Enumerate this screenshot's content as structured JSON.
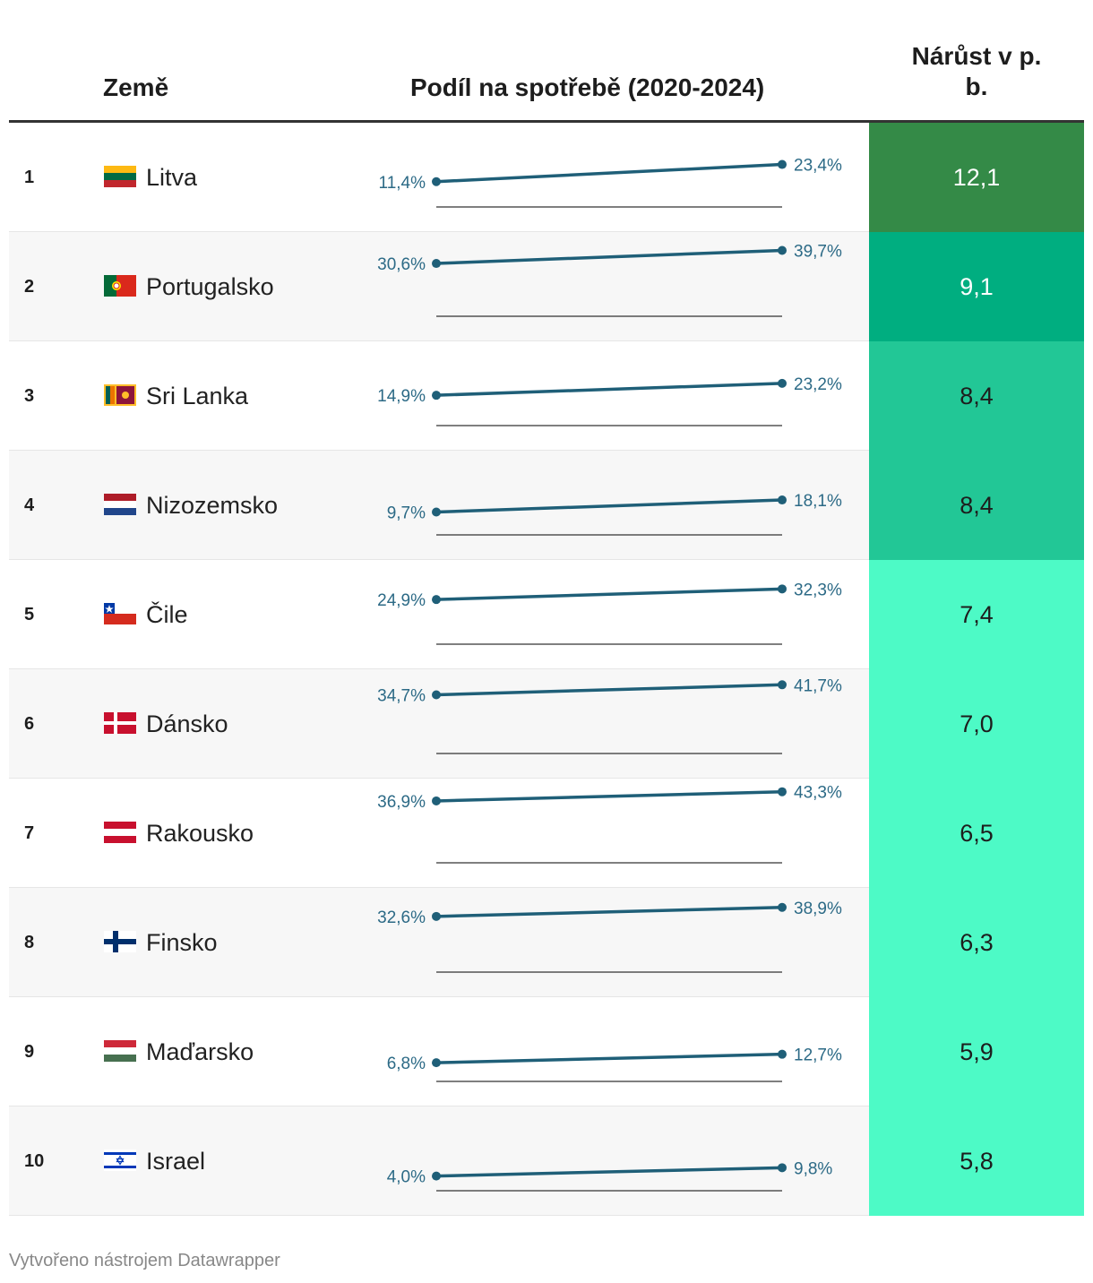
{
  "header": {
    "country": "Země",
    "share": "Podíl na spotřebě (2020-2024)",
    "growth_line1": "Nárůst v p.",
    "growth_line2": "b."
  },
  "footer": "Vytvořeno nástrojem Datawrapper",
  "colors": {
    "line": "#1f5f78",
    "label": "#2c6a86",
    "growth_scale": [
      "#348a47",
      "#00ae80",
      "#22c796",
      "#22c796",
      "#4dfac6"
    ]
  },
  "chart_data": {
    "type": "table",
    "columns": [
      "Země",
      "Podíl na spotřebě (2020-2024)",
      "Nárůst v p. b."
    ],
    "sparkline_range": [
      0,
      45
    ],
    "rows": [
      {
        "rank": "1",
        "country": "Litva",
        "flag": "lithuania-flag",
        "start": 11.4,
        "end": 23.4,
        "start_label": "11,4%",
        "end_label": "23,4%",
        "growth": 12.1,
        "growth_label": "12,1",
        "color": "#348a47",
        "text_color": "#ffffff"
      },
      {
        "rank": "2",
        "country": "Portugalsko",
        "flag": "portugal-flag",
        "start": 30.6,
        "end": 39.7,
        "start_label": "30,6%",
        "end_label": "39,7%",
        "growth": 9.1,
        "growth_label": "9,1",
        "color": "#00ae80",
        "text_color": "#ffffff"
      },
      {
        "rank": "3",
        "country": "Sri Lanka",
        "flag": "sri-lanka-flag",
        "start": 14.9,
        "end": 23.2,
        "start_label": "14,9%",
        "end_label": "23,2%",
        "growth": 8.4,
        "growth_label": "8,4",
        "color": "#22c796",
        "text_color": "#1d1d1d"
      },
      {
        "rank": "4",
        "country": "Nizozemsko",
        "flag": "netherlands-flag",
        "start": 9.7,
        "end": 18.1,
        "start_label": "9,7%",
        "end_label": "18,1%",
        "growth": 8.4,
        "growth_label": "8,4",
        "color": "#22c796",
        "text_color": "#1d1d1d"
      },
      {
        "rank": "5",
        "country": "Čile",
        "flag": "chile-flag",
        "start": 24.9,
        "end": 32.3,
        "start_label": "24,9%",
        "end_label": "32,3%",
        "growth": 7.4,
        "growth_label": "7,4",
        "color": "#4dfac6",
        "text_color": "#1d1d1d"
      },
      {
        "rank": "6",
        "country": "Dánsko",
        "flag": "denmark-flag",
        "start": 34.7,
        "end": 41.7,
        "start_label": "34,7%",
        "end_label": "41,7%",
        "growth": 7.0,
        "growth_label": "7,0",
        "color": "#4dfac6",
        "text_color": "#1d1d1d"
      },
      {
        "rank": "7",
        "country": "Rakousko",
        "flag": "austria-flag",
        "start": 36.9,
        "end": 43.3,
        "start_label": "36,9%",
        "end_label": "43,3%",
        "growth": 6.5,
        "growth_label": "6,5",
        "color": "#4dfac6",
        "text_color": "#1d1d1d"
      },
      {
        "rank": "8",
        "country": "Finsko",
        "flag": "finland-flag",
        "start": 32.6,
        "end": 38.9,
        "start_label": "32,6%",
        "end_label": "38,9%",
        "growth": 6.3,
        "growth_label": "6,3",
        "color": "#4dfac6",
        "text_color": "#1d1d1d"
      },
      {
        "rank": "9",
        "country": "Maďarsko",
        "flag": "hungary-flag",
        "start": 6.8,
        "end": 12.7,
        "start_label": "6,8%",
        "end_label": "12,7%",
        "growth": 5.9,
        "growth_label": "5,9",
        "color": "#4dfac6",
        "text_color": "#1d1d1d"
      },
      {
        "rank": "10",
        "country": "Israel",
        "flag": "israel-flag",
        "start": 4.0,
        "end": 9.8,
        "start_label": "4,0%",
        "end_label": "9,8%",
        "growth": 5.8,
        "growth_label": "5,8",
        "color": "#4dfac6",
        "text_color": "#1d1d1d"
      }
    ]
  }
}
